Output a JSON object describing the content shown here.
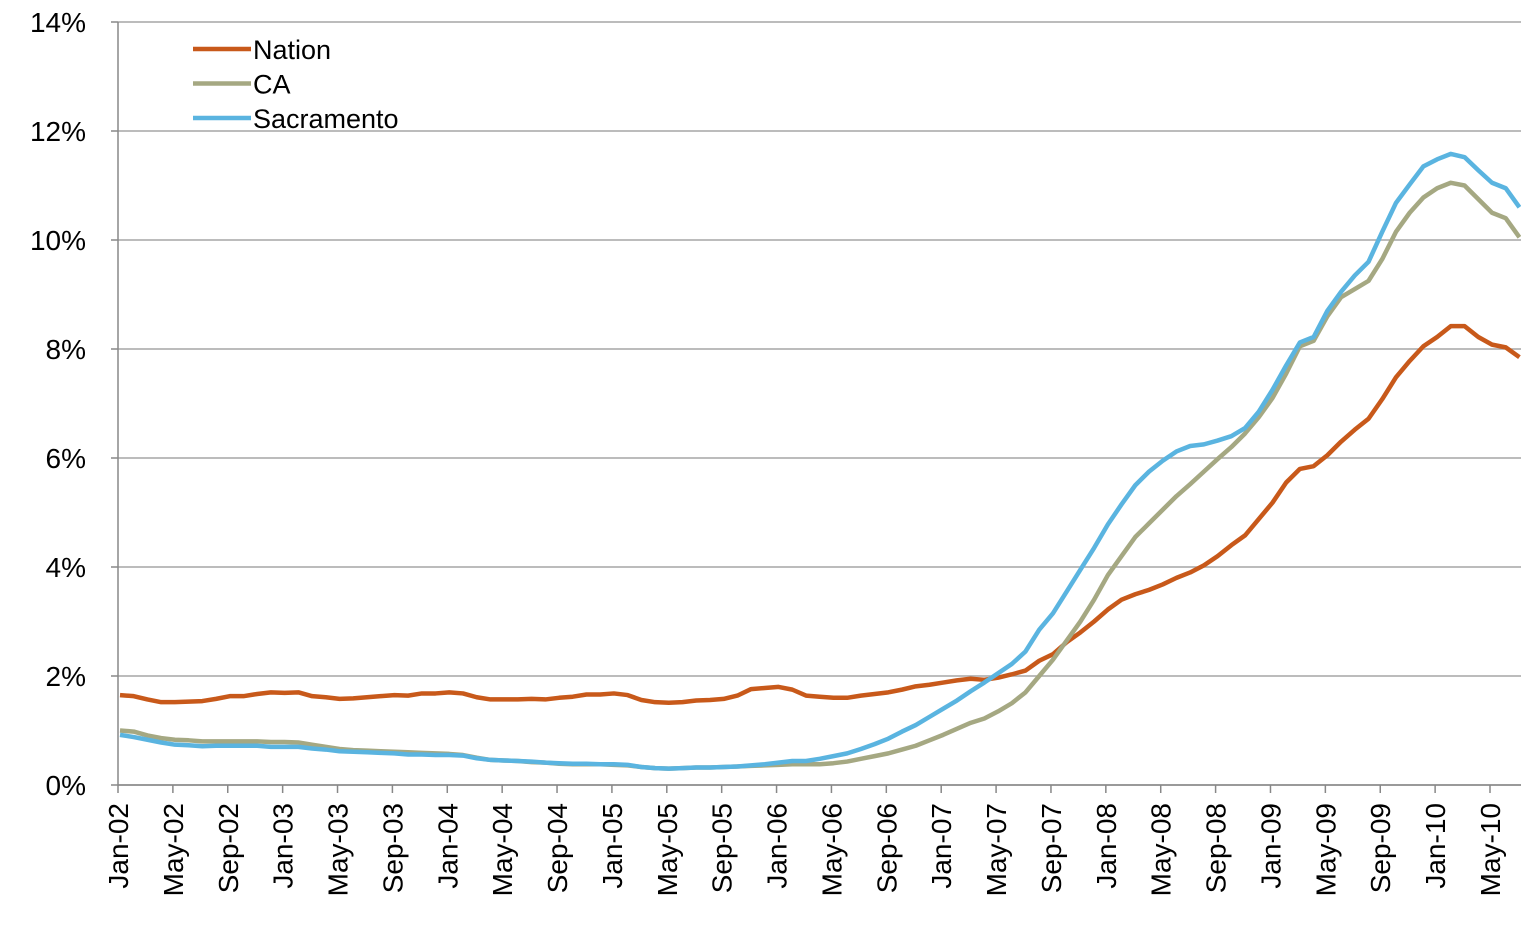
{
  "chart_data": {
    "type": "line",
    "categories": [
      "Jan-02",
      null,
      null,
      null,
      "May-02",
      null,
      null,
      null,
      "Sep-02",
      null,
      null,
      null,
      "Jan-03",
      null,
      null,
      null,
      "May-03",
      null,
      null,
      null,
      "Sep-03",
      null,
      null,
      null,
      "Jan-04",
      null,
      null,
      null,
      "May-04",
      null,
      null,
      null,
      "Sep-04",
      null,
      null,
      null,
      "Jan-05",
      null,
      null,
      null,
      "May-05",
      null,
      null,
      null,
      "Sep-05",
      null,
      null,
      null,
      "Jan-06",
      null,
      null,
      null,
      "May-06",
      null,
      null,
      null,
      "Sep-06",
      null,
      null,
      null,
      "Jan-07",
      null,
      null,
      null,
      "May-07",
      null,
      null,
      null,
      "Sep-07",
      null,
      null,
      null,
      "Jan-08",
      null,
      null,
      null,
      "May-08",
      null,
      null,
      null,
      "Sep-08",
      null,
      null,
      null,
      "Jan-09",
      null,
      null,
      null,
      "May-09",
      null,
      null,
      null,
      "Sep-09",
      null,
      null,
      null,
      "Jan-10",
      null,
      null,
      null,
      "May-10",
      null,
      null
    ],
    "series": [
      {
        "name": "Nation",
        "color": "#c8591a",
        "values": [
          1.65,
          1.63,
          1.57,
          1.52,
          1.52,
          1.53,
          1.54,
          1.58,
          1.63,
          1.63,
          1.67,
          1.7,
          1.69,
          1.7,
          1.63,
          1.61,
          1.58,
          1.59,
          1.61,
          1.63,
          1.65,
          1.64,
          1.68,
          1.68,
          1.7,
          1.68,
          1.61,
          1.57,
          1.57,
          1.57,
          1.58,
          1.57,
          1.6,
          1.62,
          1.66,
          1.66,
          1.68,
          1.65,
          1.56,
          1.52,
          1.51,
          1.52,
          1.55,
          1.56,
          1.58,
          1.64,
          1.76,
          1.78,
          1.8,
          1.75,
          1.64,
          1.62,
          1.6,
          1.6,
          1.64,
          1.67,
          1.7,
          1.75,
          1.81,
          1.84,
          1.88,
          1.92,
          1.95,
          1.93,
          1.97,
          2.03,
          2.1,
          2.28,
          2.4,
          2.62,
          2.8,
          3.0,
          3.22,
          3.4,
          3.5,
          3.58,
          3.68,
          3.8,
          3.9,
          4.03,
          4.2,
          4.4,
          4.58,
          4.88,
          5.18,
          5.55,
          5.8,
          5.85,
          6.05,
          6.3,
          6.52,
          6.72,
          7.08,
          7.48,
          7.78,
          8.05,
          8.22,
          8.42,
          8.42,
          8.22,
          8.08,
          8.03,
          7.85
        ]
      },
      {
        "name": "CA",
        "color": "#a5a882",
        "values": [
          1.0,
          0.98,
          0.91,
          0.86,
          0.83,
          0.82,
          0.8,
          0.8,
          0.8,
          0.8,
          0.8,
          0.79,
          0.79,
          0.78,
          0.74,
          0.7,
          0.66,
          0.64,
          0.63,
          0.62,
          0.61,
          0.6,
          0.59,
          0.58,
          0.57,
          0.55,
          0.5,
          0.46,
          0.45,
          0.44,
          0.42,
          0.41,
          0.39,
          0.38,
          0.38,
          0.38,
          0.37,
          0.36,
          0.33,
          0.31,
          0.3,
          0.31,
          0.32,
          0.32,
          0.33,
          0.34,
          0.35,
          0.36,
          0.37,
          0.38,
          0.38,
          0.38,
          0.4,
          0.43,
          0.48,
          0.53,
          0.58,
          0.65,
          0.72,
          0.82,
          0.92,
          1.03,
          1.14,
          1.22,
          1.35,
          1.5,
          1.7,
          2.0,
          2.3,
          2.65,
          3.0,
          3.4,
          3.85,
          4.2,
          4.55,
          4.8,
          5.05,
          5.3,
          5.52,
          5.75,
          5.98,
          6.2,
          6.45,
          6.75,
          7.1,
          7.55,
          8.05,
          8.15,
          8.6,
          8.95,
          9.1,
          9.25,
          9.65,
          10.15,
          10.5,
          10.78,
          10.95,
          11.05,
          11.0,
          10.75,
          10.5,
          10.4,
          10.05
        ]
      },
      {
        "name": "Sacramento",
        "color": "#5ab4e0",
        "values": [
          0.92,
          0.88,
          0.83,
          0.78,
          0.74,
          0.73,
          0.71,
          0.72,
          0.72,
          0.72,
          0.72,
          0.7,
          0.7,
          0.7,
          0.67,
          0.65,
          0.62,
          0.61,
          0.6,
          0.59,
          0.58,
          0.56,
          0.56,
          0.55,
          0.55,
          0.54,
          0.49,
          0.46,
          0.45,
          0.44,
          0.43,
          0.41,
          0.4,
          0.39,
          0.39,
          0.38,
          0.38,
          0.37,
          0.33,
          0.31,
          0.3,
          0.31,
          0.32,
          0.32,
          0.33,
          0.34,
          0.36,
          0.38,
          0.41,
          0.44,
          0.44,
          0.48,
          0.53,
          0.58,
          0.66,
          0.75,
          0.85,
          0.98,
          1.1,
          1.25,
          1.4,
          1.55,
          1.72,
          1.88,
          2.05,
          2.22,
          2.45,
          2.85,
          3.15,
          3.55,
          3.95,
          4.35,
          4.78,
          5.15,
          5.5,
          5.75,
          5.95,
          6.12,
          6.22,
          6.25,
          6.32,
          6.4,
          6.55,
          6.85,
          7.25,
          7.7,
          8.12,
          8.22,
          8.7,
          9.05,
          9.35,
          9.6,
          10.15,
          10.68,
          11.02,
          11.35,
          11.48,
          11.58,
          11.52,
          11.28,
          11.05,
          10.95,
          10.6
        ]
      }
    ],
    "ylim": [
      0,
      14
    ],
    "yticks": [
      {
        "value": 0,
        "label": "0%"
      },
      {
        "value": 2,
        "label": "2%"
      },
      {
        "value": 4,
        "label": "4%"
      },
      {
        "value": 6,
        "label": "6%"
      },
      {
        "value": 8,
        "label": "8%"
      },
      {
        "value": 10,
        "label": "10%"
      },
      {
        "value": 12,
        "label": "12%"
      },
      {
        "value": 14,
        "label": "14%"
      }
    ],
    "grid": true,
    "legend": "top-left"
  }
}
